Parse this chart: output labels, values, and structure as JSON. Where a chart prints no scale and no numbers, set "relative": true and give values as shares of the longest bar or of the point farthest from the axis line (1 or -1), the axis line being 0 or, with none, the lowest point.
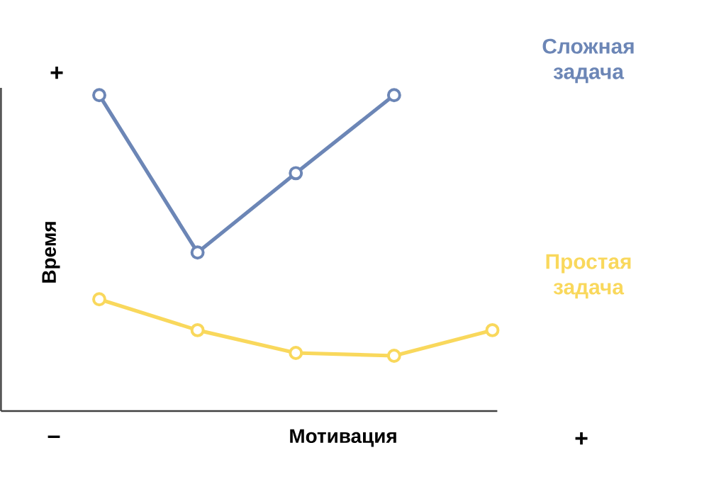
{
  "chart_data": {
    "type": "line",
    "xlabel": "Мотивация",
    "ylabel": "Время",
    "relative": true,
    "marker": "circle",
    "categories": [
      null,
      null,
      null,
      null,
      null
    ],
    "series": [
      {
        "name": "Сложная задача",
        "color": "#6c86b6",
        "values": [
          1,
          0.502,
          0.753,
          1,
          null
        ]
      },
      {
        "name": "Простая задача",
        "color": "#f9d85c",
        "values": [
          0.354,
          0.256,
          0.184,
          0.175,
          0.256
        ]
      }
    ],
    "annotations": [
      "+",
      "–",
      "+"
    ]
  }
}
